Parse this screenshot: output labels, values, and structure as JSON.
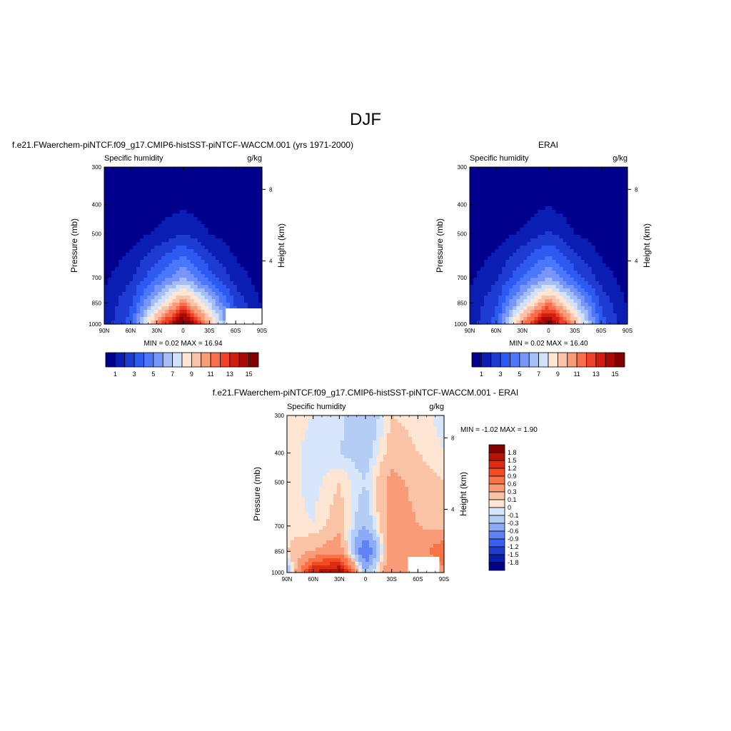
{
  "figure": {
    "title": "DJF"
  },
  "panels": [
    {
      "id": "model",
      "title": "f.e21.FWaerchem-piNTCF.f09_g17.CMIP6-histSST-piNTCF-WACCM.001 (yrs 1971-2000)",
      "left_string": "Specific humidity",
      "right_string": "g/kg",
      "ylabel": "Pressure (mb)",
      "y2label": "Height (km)",
      "stats": "MIN =   0.02  MAX =  16.94",
      "min": 0.02,
      "max": 16.94
    },
    {
      "id": "obs",
      "title": "ERAI",
      "left_string": "Specific humidity",
      "right_string": "g/kg",
      "ylabel": "Pressure (mb)",
      "y2label": "Height (km)",
      "stats": "MIN =   0.02  MAX =  16.40",
      "min": 0.02,
      "max": 16.4
    },
    {
      "id": "diff",
      "title": "f.e21.FWaerchem-piNTCF.f09_g17.CMIP6-histSST-piNTCF-WACCM.001 - ERAI",
      "left_string": "Specific humidity",
      "right_string": "g/kg",
      "ylabel": "Pressure (mb)",
      "y2label": "Height (km)",
      "stats": "MIN =  -1.02  MAX =   1.90",
      "min": -1.02,
      "max": 1.9
    }
  ],
  "x_ticks": [
    "90N",
    "60N",
    "30N",
    "0",
    "30S",
    "60S",
    "90S"
  ],
  "y_ticks": [
    "300",
    "400",
    "500",
    "700",
    "850",
    "1000"
  ],
  "y2_ticks": [
    "8",
    "4"
  ],
  "main_colorbar": {
    "labels": [
      "1",
      "3",
      "5",
      "7",
      "9",
      "11",
      "13",
      "15"
    ],
    "colors": [
      "#00008c",
      "#0a1eb4",
      "#1e3cd2",
      "#2d5af0",
      "#4b78fa",
      "#7896fa",
      "#a5bef5",
      "#d2e1fa",
      "#ffe6d2",
      "#fac3aa",
      "#fa9b78",
      "#fa6e4b",
      "#f04128",
      "#d21e0f",
      "#aa0a05",
      "#820000"
    ]
  },
  "diff_colorbar": {
    "labels": [
      "1.8",
      "1.5",
      "1.2",
      "0.9",
      "0.6",
      "0.3",
      "0.1",
      "0",
      "-0.1",
      "-0.3",
      "-0.6",
      "-0.9",
      "-1.2",
      "-1.5",
      "-1.8"
    ],
    "colors": [
      "#820000",
      "#b41405",
      "#dc2d14",
      "#f54b23",
      "#fa7346",
      "#fa9b78",
      "#fac3a5",
      "#ffe6d2",
      "#d7e6fa",
      "#b4cdf5",
      "#8caaf5",
      "#5f82f5",
      "#3760f0",
      "#1e3cd2",
      "#0a1eaa",
      "#00008c"
    ]
  },
  "chart_data": [
    {
      "type": "heatmap",
      "panel": "model",
      "title": "f.e21.FWaerchem-piNTCF.f09_g17.CMIP6-histSST-piNTCF-WACCM.001 (yrs 1971-2000)",
      "xlabel": "",
      "ylabel": "Pressure (mb)",
      "x": [
        90,
        60,
        30,
        0,
        -30,
        -60,
        -90
      ],
      "y": [
        300,
        400,
        500,
        700,
        850,
        1000
      ],
      "ylim": [
        1000,
        300
      ],
      "y_scale": "log",
      "values": [
        [
          0.02,
          0.05,
          0.15,
          0.3,
          0.12,
          0.04,
          0.02
        ],
        [
          0.05,
          0.15,
          0.45,
          0.8,
          0.4,
          0.12,
          0.05
        ],
        [
          0.15,
          0.45,
          1.2,
          2.0,
          1.0,
          0.35,
          0.1
        ],
        [
          0.8,
          1.8,
          4.0,
          6.0,
          3.5,
          1.5,
          0.5
        ],
        [
          1.2,
          2.8,
          7.0,
          11.0,
          7.0,
          2.8,
          0.9
        ],
        [
          1.3,
          3.5,
          11.0,
          16.9,
          10.0,
          3.5,
          1.0
        ]
      ]
    },
    {
      "type": "heatmap",
      "panel": "obs",
      "title": "ERAI",
      "xlabel": "",
      "ylabel": "Pressure (mb)",
      "x": [
        90,
        60,
        30,
        0,
        -30,
        -60,
        -90
      ],
      "y": [
        300,
        400,
        500,
        700,
        850,
        1000
      ],
      "ylim": [
        1000,
        300
      ],
      "y_scale": "log",
      "values": [
        [
          0.02,
          0.05,
          0.15,
          0.35,
          0.12,
          0.04,
          0.02
        ],
        [
          0.05,
          0.15,
          0.45,
          0.9,
          0.4,
          0.12,
          0.05
        ],
        [
          0.15,
          0.45,
          1.2,
          2.2,
          1.0,
          0.35,
          0.1
        ],
        [
          0.8,
          1.8,
          4.0,
          6.0,
          3.5,
          1.5,
          0.5
        ],
        [
          1.2,
          2.8,
          7.0,
          11.0,
          7.0,
          2.8,
          0.9
        ],
        [
          1.3,
          3.5,
          11.0,
          16.4,
          10.0,
          3.5,
          1.0
        ]
      ]
    },
    {
      "type": "heatmap",
      "panel": "diff",
      "title": "f.e21.FWaerchem-piNTCF.f09_g17.CMIP6-histSST-piNTCF-WACCM.001 - ERAI",
      "xlabel": "",
      "ylabel": "Pressure (mb)",
      "x": [
        90,
        60,
        30,
        0,
        -30,
        -60,
        -90
      ],
      "y": [
        300,
        400,
        500,
        700,
        850,
        1000
      ],
      "ylim": [
        1000,
        300
      ],
      "y_scale": "log",
      "values": [
        [
          0.05,
          0.0,
          -0.05,
          -0.3,
          0.1,
          0.05,
          -0.05
        ],
        [
          0.05,
          -0.05,
          -0.1,
          -0.2,
          0.2,
          0.1,
          0.0
        ],
        [
          0.05,
          -0.05,
          0.1,
          -0.1,
          0.4,
          0.2,
          0.1
        ],
        [
          0.05,
          0.0,
          0.2,
          -0.3,
          0.5,
          0.3,
          0.2
        ],
        [
          0.1,
          0.3,
          0.5,
          -1.0,
          0.5,
          0.4,
          0.9
        ],
        [
          -0.3,
          1.5,
          1.9,
          -0.3,
          0.6,
          0.2,
          0.5
        ]
      ]
    }
  ]
}
